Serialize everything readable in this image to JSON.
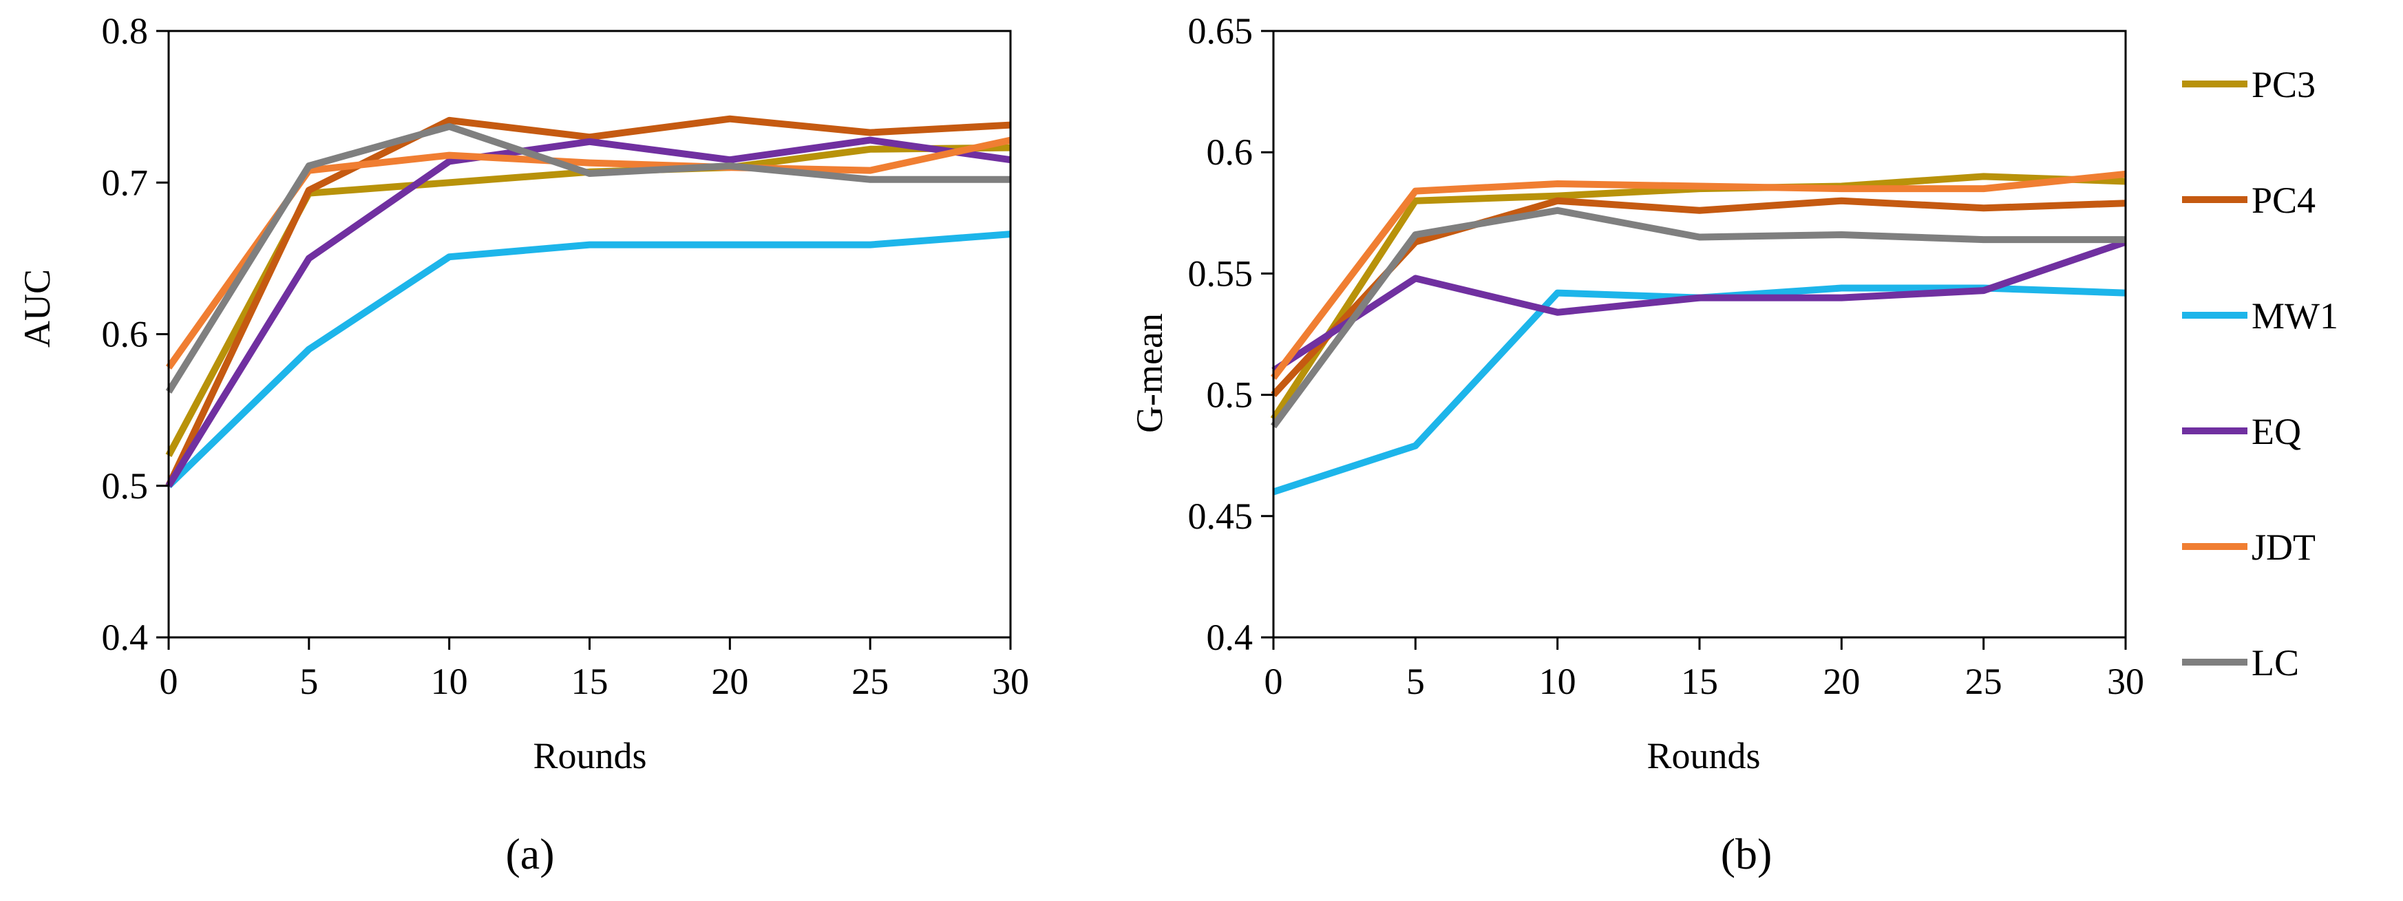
{
  "colors": {
    "PC3": "#B8920A",
    "PC4": "#C55A11",
    "MW1": "#1DB5EA",
    "EQ": "#7030A0",
    "JDT": "#F07E32",
    "LC": "#7F7F7F"
  },
  "legend": {
    "entries": [
      "PC3",
      "PC4",
      "MW1",
      "EQ",
      "JDT",
      "LC"
    ]
  },
  "chart_data": [
    {
      "id": "a",
      "type": "line",
      "panel_label": "(a)",
      "xlabel": "Rounds",
      "ylabel": "AUC",
      "x": [
        0,
        5,
        10,
        15,
        20,
        25,
        30
      ],
      "xlim": [
        0,
        30
      ],
      "ylim": [
        0.4,
        0.8
      ],
      "xticks": [
        "0",
        "5",
        "10",
        "15",
        "20",
        "25",
        "30"
      ],
      "yticks": [
        "0.4",
        "0.5",
        "0.6",
        "0.7",
        "0.8"
      ],
      "series": [
        {
          "name": "PC3",
          "values": [
            0.52,
            0.693,
            0.7,
            0.707,
            0.71,
            0.722,
            0.723
          ]
        },
        {
          "name": "PC4",
          "values": [
            0.5,
            0.695,
            0.741,
            0.73,
            0.742,
            0.733,
            0.738
          ]
        },
        {
          "name": "MW1",
          "values": [
            0.5,
            0.59,
            0.651,
            0.659,
            0.659,
            0.659,
            0.666
          ]
        },
        {
          "name": "EQ",
          "values": [
            0.5,
            0.65,
            0.714,
            0.727,
            0.715,
            0.728,
            0.715
          ]
        },
        {
          "name": "JDT",
          "values": [
            0.578,
            0.708,
            0.718,
            0.713,
            0.71,
            0.708,
            0.728
          ]
        },
        {
          "name": "LC",
          "values": [
            0.562,
            0.711,
            0.737,
            0.706,
            0.711,
            0.702,
            0.702
          ]
        }
      ]
    },
    {
      "id": "b",
      "type": "line",
      "panel_label": "(b)",
      "xlabel": "Rounds",
      "ylabel": "G-mean",
      "x": [
        0,
        5,
        10,
        15,
        20,
        25,
        30
      ],
      "xlim": [
        0,
        30
      ],
      "ylim": [
        0.4,
        0.65
      ],
      "xticks": [
        "0",
        "5",
        "10",
        "15",
        "20",
        "25",
        "30"
      ],
      "yticks": [
        "0.4",
        "0.45",
        "0.5",
        "0.55",
        "0.6",
        "0.65"
      ],
      "series": [
        {
          "name": "PC3",
          "values": [
            0.49,
            0.58,
            0.582,
            0.585,
            0.586,
            0.59,
            0.588
          ]
        },
        {
          "name": "PC4",
          "values": [
            0.5,
            0.563,
            0.58,
            0.576,
            0.58,
            0.577,
            0.579
          ]
        },
        {
          "name": "MW1",
          "values": [
            0.46,
            0.479,
            0.542,
            0.54,
            0.544,
            0.544,
            0.542
          ]
        },
        {
          "name": "EQ",
          "values": [
            0.51,
            0.548,
            0.534,
            0.54,
            0.54,
            0.543,
            0.563
          ]
        },
        {
          "name": "JDT",
          "values": [
            0.507,
            0.584,
            0.587,
            0.586,
            0.585,
            0.585,
            0.591
          ]
        },
        {
          "name": "LC",
          "values": [
            0.487,
            0.566,
            0.576,
            0.565,
            0.566,
            0.564,
            0.564
          ]
        }
      ]
    }
  ]
}
